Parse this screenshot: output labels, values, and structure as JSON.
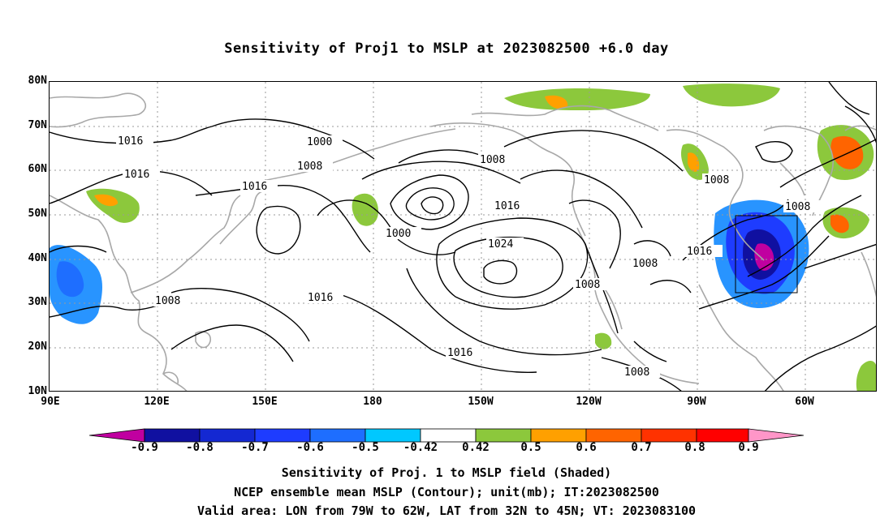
{
  "title": "Sensitivity of Proj1 to MSLP at 2023082500 +6.0 day",
  "map": {
    "lat_labels": [
      "80N",
      "70N",
      "60N",
      "50N",
      "40N",
      "30N",
      "20N",
      "10N"
    ],
    "lon_labels": [
      "90E",
      "120E",
      "150E",
      "180",
      "150W",
      "120W",
      "90W",
      "60W"
    ],
    "contour_labels": [
      "1016",
      "1000",
      "1016",
      "1008",
      "1008",
      "1016",
      "1000",
      "1016",
      "1024",
      "1008",
      "1008",
      "1008",
      "1016",
      "1008",
      "1016",
      "1016",
      "1008",
      "1008"
    ],
    "valid_box": {
      "lon_range": [
        "79W",
        "62W"
      ],
      "lat_range": [
        "32N",
        "45N"
      ]
    }
  },
  "colorbar": {
    "labels": [
      "-0.9",
      "-0.8",
      "-0.7",
      "-0.6",
      "-0.5",
      "-0.42",
      "0.42",
      "0.5",
      "0.6",
      "0.7",
      "0.8",
      "0.9"
    ],
    "colors": [
      "#c000a0",
      "#1010a0",
      "#1428d2",
      "#1e3cff",
      "#1e6eff",
      "#2894ff",
      "#00c8ff",
      "#ffffff",
      "#8cc83c",
      "#ffa000",
      "#ff6400",
      "#ff3200",
      "#ff0000",
      "#ff96c8"
    ]
  },
  "caption": {
    "line1": "Sensitivity of Proj. 1 to MSLP field (Shaded)",
    "line2": "NCEP ensemble mean MSLP (Contour); unit(mb); IT:2023082500",
    "line3": "Valid area: LON from 79W to 62W, LAT from 32N to 45N; VT: 2023083100"
  }
}
